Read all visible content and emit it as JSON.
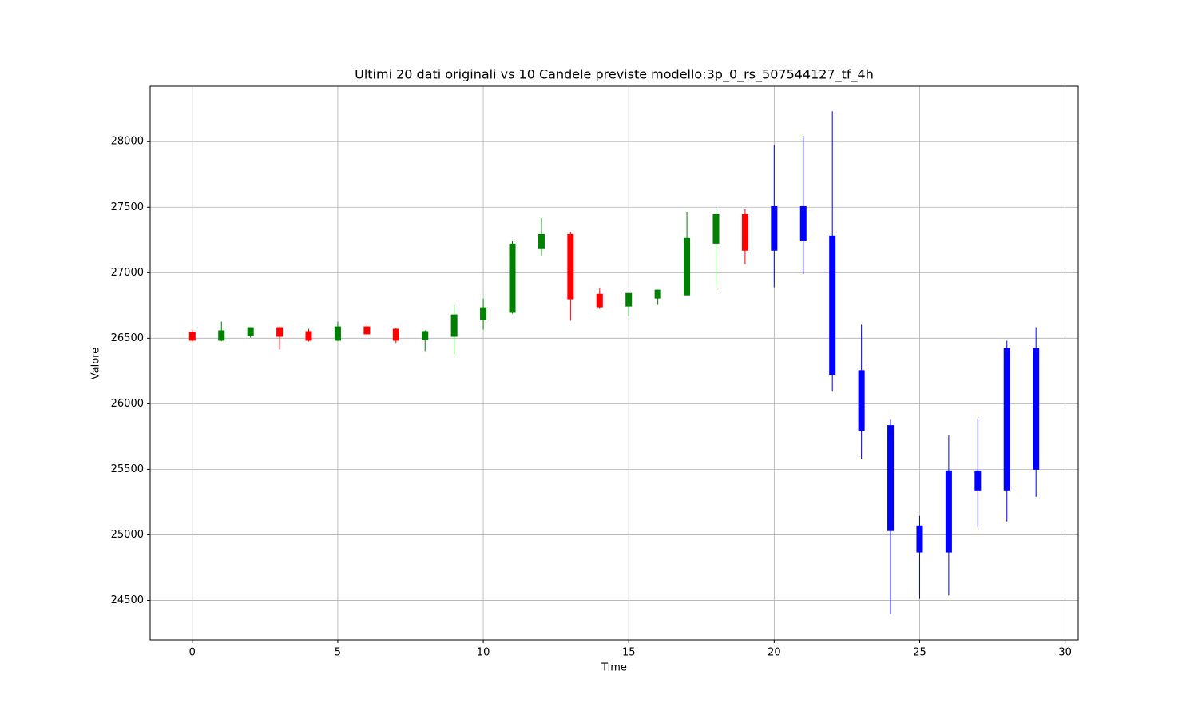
{
  "chart_data": {
    "type": "candlestick",
    "title": "Ultimi 20 dati originali vs 10 Candele previste modello:3p_0_rs_507544127_tf_4h",
    "xlabel": "Time",
    "ylabel": "Valore",
    "x": [
      0,
      1,
      2,
      3,
      4,
      5,
      6,
      7,
      8,
      9,
      10,
      11,
      12,
      13,
      14,
      15,
      16,
      17,
      18,
      19,
      20,
      21,
      22,
      23,
      24,
      25,
      26,
      27,
      28,
      29
    ],
    "open": [
      26548,
      26481,
      26517,
      26584,
      26554,
      26481,
      26590,
      26572,
      26487,
      26511,
      26639,
      26694,
      27180,
      27295,
      26839,
      26742,
      26803,
      26827,
      27222,
      27447,
      27168,
      27240,
      27283,
      26256,
      25837,
      25071,
      24865,
      25339,
      25339,
      25497
    ],
    "high": [
      26560,
      26627,
      26584,
      26590,
      26572,
      26627,
      26603,
      26578,
      26560,
      26754,
      26803,
      27240,
      27417,
      27313,
      26882,
      26845,
      26870,
      27465,
      27484,
      27484,
      27976,
      28043,
      28231,
      26603,
      25879,
      25144,
      25758,
      25886,
      26481,
      26584
    ],
    "low": [
      26475,
      26478,
      26505,
      26414,
      26475,
      26478,
      26524,
      26463,
      26402,
      26378,
      26566,
      26688,
      27131,
      26633,
      26724,
      26669,
      26754,
      26827,
      26882,
      27064,
      26888,
      26991,
      26092,
      25582,
      24397,
      24512,
      24537,
      25059,
      25102,
      25290
    ],
    "close": [
      26481,
      26560,
      26584,
      26511,
      26481,
      26590,
      26530,
      26481,
      26554,
      26681,
      26736,
      27222,
      27295,
      26797,
      26736,
      26845,
      26870,
      27265,
      27447,
      27168,
      27508,
      27508,
      26220,
      25794,
      25029,
      24865,
      25491,
      25491,
      26426,
      26426
    ],
    "colors": [
      "red",
      "green",
      "green",
      "red",
      "red",
      "green",
      "red",
      "red",
      "green",
      "green",
      "green",
      "green",
      "green",
      "red",
      "red",
      "green",
      "green",
      "green",
      "green",
      "red",
      "blue",
      "blue",
      "blue",
      "blue",
      "blue",
      "blue",
      "blue",
      "blue",
      "blue",
      "blue"
    ],
    "xlim": [
      -1.45,
      30.45
    ],
    "xticks": [
      0,
      5,
      10,
      15,
      20,
      25,
      30
    ],
    "ylim": [
      24198,
      28422
    ],
    "yticks": [
      24500,
      25000,
      25500,
      26000,
      26500,
      27000,
      27500,
      28000
    ],
    "grid": true
  }
}
